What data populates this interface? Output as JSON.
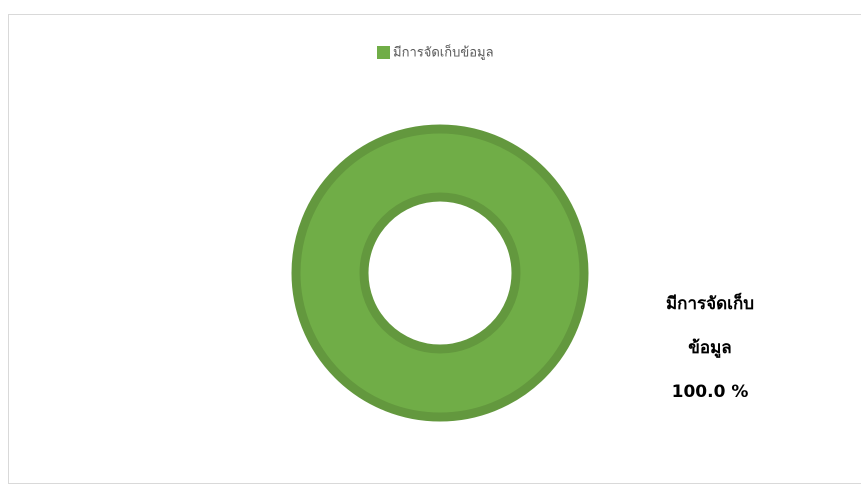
{
  "chart_data": {
    "type": "pie",
    "donut": true,
    "categories": [
      "มีการจัดเก็บข้อมูล"
    ],
    "values": [
      100
    ],
    "value_labels": [
      "100.0 %"
    ],
    "colors": [
      "#70ad47"
    ],
    "legend": "top"
  }
}
